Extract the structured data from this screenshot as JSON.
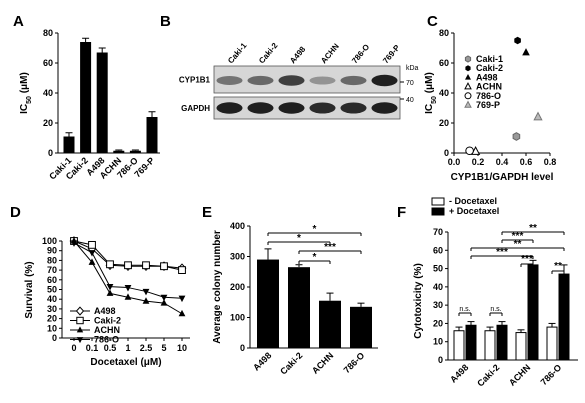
{
  "panels": {
    "A": {
      "label": "A",
      "chart_data": {
        "type": "bar",
        "categories": [
          "Caki-1",
          "Caki-2",
          "A498",
          "ACHN",
          "786-O",
          "769-P"
        ],
        "values": [
          11,
          74,
          67,
          1.5,
          1.5,
          24
        ],
        "errors": [
          2.5,
          2.5,
          3,
          0.5,
          0.5,
          3.5
        ],
        "ylabel": "IC50 (μM)",
        "ylabel_main": "IC",
        "ylabel_sub": "50",
        "ylabel_unit": " (μM)",
        "ylim": [
          0,
          80
        ],
        "yticks": [
          0,
          20,
          40,
          60,
          80
        ],
        "bar_color": "#000000"
      }
    },
    "B": {
      "label": "B",
      "lanes": [
        "Caki-1",
        "Caki-2",
        "A498",
        "ACHN",
        "786-O",
        "769-P"
      ],
      "rows": [
        {
          "name": "CYP1B1",
          "intensities": [
            0.5,
            0.55,
            0.75,
            0.35,
            0.55,
            0.9
          ]
        },
        {
          "name": "GAPDH",
          "intensities": [
            0.9,
            0.9,
            0.9,
            0.85,
            0.85,
            0.9
          ]
        }
      ],
      "markers": [
        "70",
        "40"
      ],
      "marker_unit": "kDa"
    },
    "C": {
      "label": "C",
      "chart_data": {
        "type": "scatter",
        "xlabel": "CYP1B1/GAPDH level",
        "ylabel": "IC50 (μM)",
        "ylabel_main": "IC",
        "ylabel_sub": "50",
        "ylabel_unit": " (μM)",
        "xlim": [
          0,
          0.8
        ],
        "ylim": [
          0,
          80
        ],
        "xticks": [
          "0.0",
          "0.2",
          "0.4",
          "0.6",
          "0.8"
        ],
        "yticks": [
          0,
          20,
          40,
          60,
          80
        ],
        "legend_position": "top-left",
        "series": [
          {
            "name": "Caki-1",
            "marker": "hexagon-gray",
            "x": 0.52,
            "y": 11
          },
          {
            "name": "Caki-2",
            "marker": "hexagon-black",
            "x": 0.53,
            "y": 75
          },
          {
            "name": "A498",
            "marker": "triangle-black",
            "x": 0.6,
            "y": 67
          },
          {
            "name": "ACHN",
            "marker": "triangle-open",
            "x": 0.18,
            "y": 1
          },
          {
            "name": "786-O",
            "marker": "circle-open",
            "x": 0.13,
            "y": 1.5
          },
          {
            "name": "769-P",
            "marker": "triangle-gray",
            "x": 0.7,
            "y": 24
          }
        ]
      }
    },
    "D": {
      "label": "D",
      "chart_data": {
        "type": "line",
        "categories": [
          "0",
          "0.1",
          "0.5",
          "1",
          "2.5",
          "5",
          "10"
        ],
        "xlabel": "Docetaxel (μM)",
        "ylabel": "Survival (%)",
        "ylim": [
          0,
          100
        ],
        "yticks": [
          0,
          10,
          20,
          30,
          40,
          50,
          60,
          70,
          80,
          90,
          100
        ],
        "legend_position": "bottom-left",
        "series": [
          {
            "name": "A498",
            "marker": "diamond-open",
            "values": [
              100,
              92,
              75,
              74,
              74,
              74,
              72
            ]
          },
          {
            "name": "Caki-2",
            "marker": "square-open",
            "values": [
              100,
              96,
              76,
              75,
              75,
              74,
              70
            ]
          },
          {
            "name": "ACHN",
            "marker": "triangle-black",
            "values": [
              100,
              78,
              46,
              42,
              38,
              36,
              25
            ]
          },
          {
            "name": "786-O",
            "marker": "triangle-down-black",
            "values": [
              98,
              88,
              53,
              52,
              48,
              42,
              41
            ]
          }
        ]
      }
    },
    "E": {
      "label": "E",
      "chart_data": {
        "type": "bar",
        "categories": [
          "A498",
          "Caki-2",
          "ACHN",
          "786-O"
        ],
        "values": [
          290,
          265,
          155,
          135
        ],
        "errors": [
          35,
          8,
          25,
          12
        ],
        "ylabel": "Average colony number",
        "ylim": [
          0,
          400
        ],
        "yticks": [
          0,
          100,
          200,
          300,
          400
        ],
        "significance": [
          "*",
          "*",
          "***",
          "*"
        ]
      }
    },
    "F": {
      "label": "F",
      "chart_data": {
        "type": "bar",
        "categories": [
          "A498",
          "Caki-2",
          "ACHN",
          "786-O"
        ],
        "ylabel": "Cytotoxicity (%)",
        "ylim": [
          0,
          70
        ],
        "yticks": [
          0,
          10,
          20,
          30,
          40,
          50,
          60,
          70
        ],
        "legend_position": "top-left",
        "series": [
          {
            "name": "- Docetaxel",
            "color": "#ffffff",
            "values": [
              16,
              16,
              15,
              18
            ],
            "errors": [
              2,
              2,
              1.5,
              2
            ]
          },
          {
            "name": "+ Docetaxel",
            "color": "#000000",
            "values": [
              19,
              19,
              52,
              47
            ],
            "errors": [
              2,
              2,
              2.5,
              5
            ]
          }
        ],
        "significance_labels": [
          "n.s.",
          "n.s.",
          "***",
          "**",
          "**",
          "***",
          "**",
          "***"
        ]
      }
    }
  }
}
